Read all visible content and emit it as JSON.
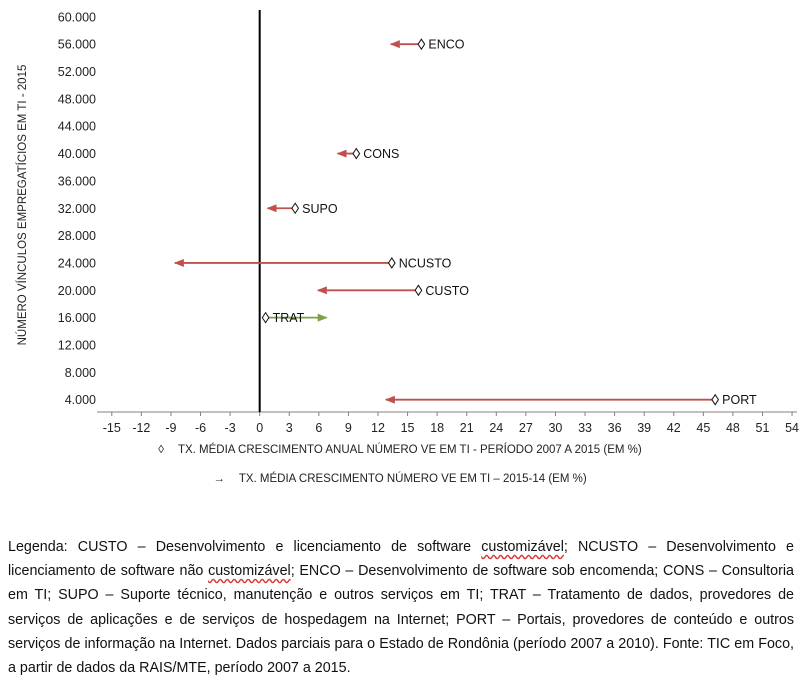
{
  "chart_data": {
    "type": "scatter",
    "ylabel": "NÚMERO VÍNCULOS EMPREGATÍCIOS EM TI - 2015",
    "xlim": [
      -16.5,
      54.5
    ],
    "ylim": [
      2200,
      61000
    ],
    "x_ticks": [
      "-15",
      "-12",
      "-9",
      "-6",
      "-3",
      "0",
      "3",
      "6",
      "9",
      "12",
      "15",
      "18",
      "21",
      "24",
      "27",
      "30",
      "33",
      "36",
      "39",
      "42",
      "45",
      "48",
      "51",
      "54"
    ],
    "y_ticks": [
      "60.000",
      "56.000",
      "52.000",
      "48.000",
      "44.000",
      "40.000",
      "36.000",
      "32.000",
      "28.000",
      "24.000",
      "20.000",
      "16.000",
      "12.000",
      "8.000",
      "4.000"
    ],
    "series": [
      {
        "name": "TX. MÉDIA CRESCIMENTO ANUAL NÚMERO VE EM TI - PERÍODO 2007 A 2015 (EM %)",
        "symbol": "◊",
        "points": [
          {
            "label": "ENCO",
            "x": 16.4,
            "y": 56000
          },
          {
            "label": "CONS",
            "x": 9.8,
            "y": 40000
          },
          {
            "label": "SUPO",
            "x": 3.6,
            "y": 32000
          },
          {
            "label": "NCUSTO",
            "x": 13.4,
            "y": 24000
          },
          {
            "label": "CUSTO",
            "x": 16.1,
            "y": 20000
          },
          {
            "label": "TRAT",
            "x": 0.6,
            "y": 16000
          },
          {
            "label": "PORT",
            "x": 46.2,
            "y": 4000
          }
        ]
      },
      {
        "name": "TX. MÉDIA CRESCIMENTO NÚMERO VE EM TI – 2015-14 (EM %)",
        "symbol": "→",
        "arrows": [
          {
            "label": "ENCO",
            "x_from": 16.4,
            "x_to": 13.3,
            "y": 56000,
            "color": "#c0504d"
          },
          {
            "label": "CONS",
            "x_from": 9.8,
            "x_to": 7.9,
            "y": 40000,
            "color": "#c0504d"
          },
          {
            "label": "SUPO",
            "x_from": 3.6,
            "x_to": 0.8,
            "y": 32000,
            "color": "#c0504d"
          },
          {
            "label": "NCUSTO",
            "x_from": 13.4,
            "x_to": -8.6,
            "y": 24000,
            "color": "#c0504d"
          },
          {
            "label": "CUSTO",
            "x_from": 16.1,
            "x_to": 5.9,
            "y": 20000,
            "color": "#c0504d"
          },
          {
            "label": "TRAT",
            "x_from": 0.6,
            "x_to": 6.8,
            "y": 16000,
            "color": "#7fa146"
          },
          {
            "label": "PORT",
            "x_from": 46.2,
            "x_to": 12.8,
            "y": 4000,
            "color": "#c0504d"
          }
        ]
      }
    ]
  },
  "caption": {
    "parts": [
      {
        "text": "Legenda: CUSTO – Desenvolvimento e licenciamento de software "
      },
      {
        "text": "customizável",
        "underline": true
      },
      {
        "text": "; NCUSTO – Desenvolvimento e licenciamento de software não "
      },
      {
        "text": "customizável",
        "underline": true
      },
      {
        "text": "; ENCO – Desenvolvimento de software sob encomenda; CONS – Consultoria em TI; SUPO – Suporte técnico, manutenção e outros serviços em TI; TRAT – Tratamento de dados, provedores de serviços de aplicações e de serviços de hospedagem na Internet; PORT – Portais, provedores de conteúdo e outros serviços de informação na Internet. Dados parciais para o Estado de Rondônia (período 2007 a 2010). Fonte: TIC em Foco, a partir de dados da RAIS/MTE, período 2007 a 2015."
      }
    ]
  }
}
